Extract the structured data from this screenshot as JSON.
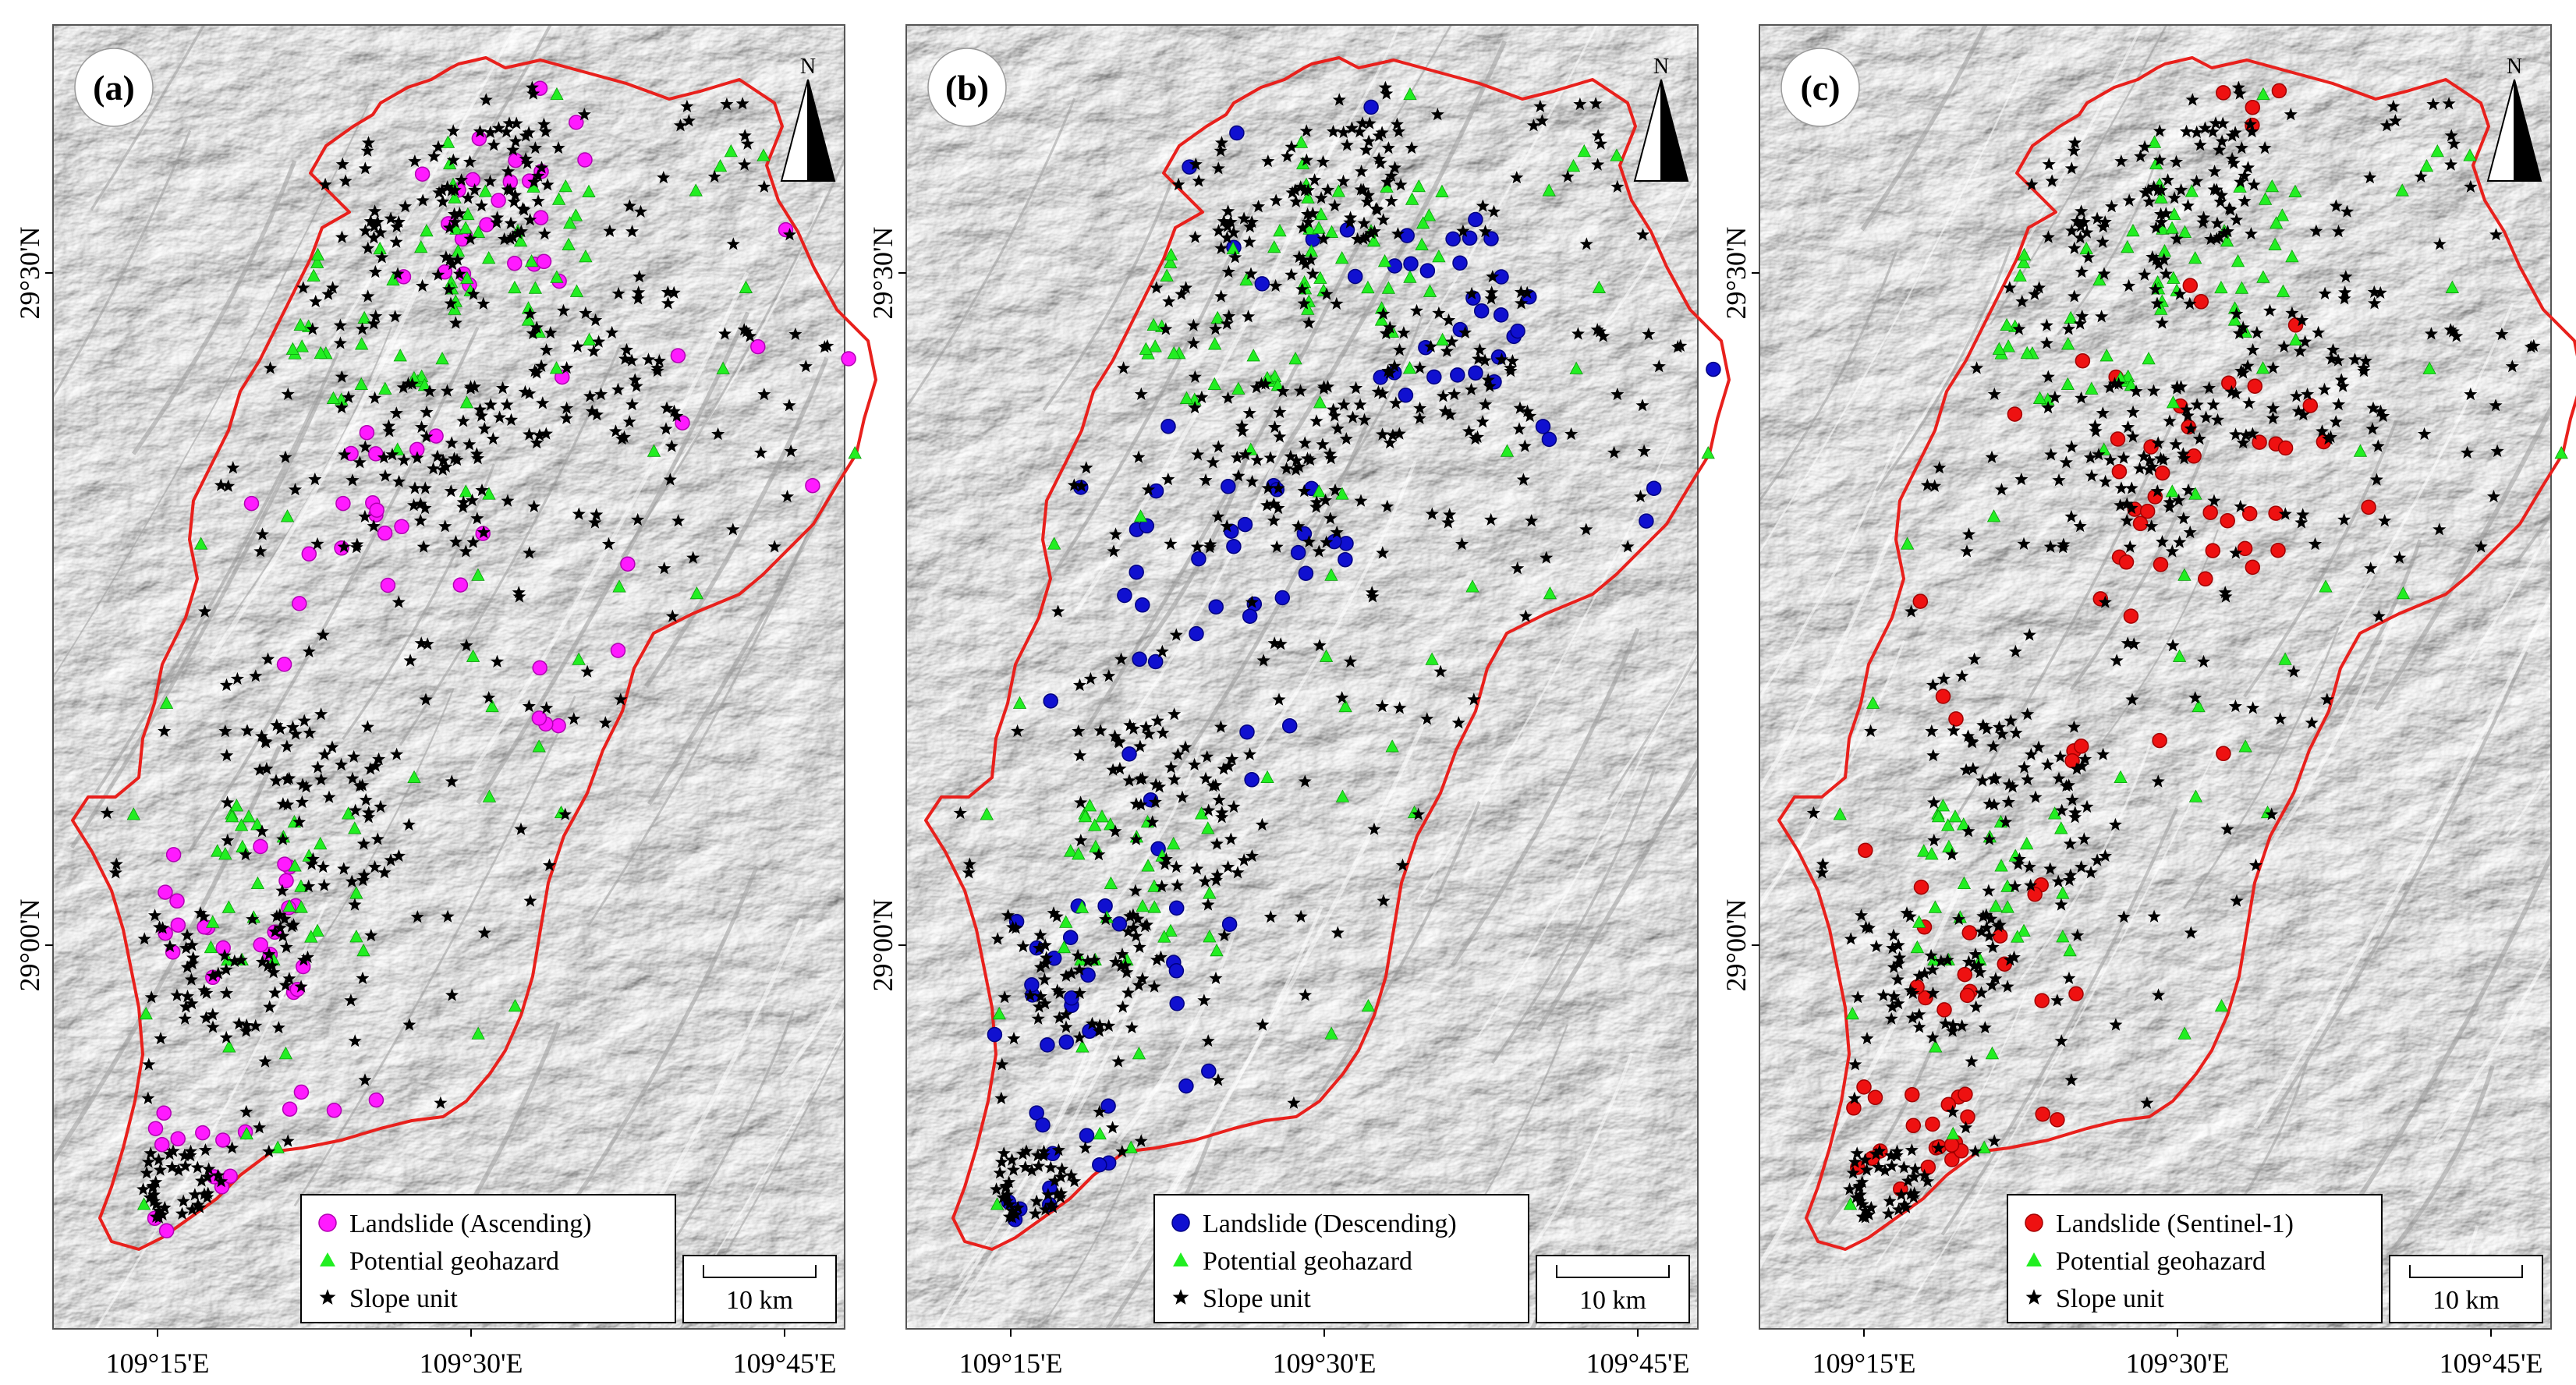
{
  "panels": [
    {
      "label": "(a)",
      "legend": {
        "landslide": "Landslide (Ascending)",
        "potential": "Potential geohazard",
        "slope": "Slope unit",
        "landslide_color": "#ff1aff",
        "landslide_stroke": "#b000b0"
      },
      "north": "N",
      "scalebar": "10 km"
    },
    {
      "label": "(b)",
      "legend": {
        "landslide": "Landslide (Descending)",
        "potential": "Potential geohazard",
        "slope": "Slope unit",
        "landslide_color": "#1010d0",
        "landslide_stroke": "#000080"
      },
      "north": "N",
      "scalebar": "10 km"
    },
    {
      "label": "(c)",
      "legend": {
        "landslide": "Landslide (Sentinel-1)",
        "potential": "Potential geohazard",
        "slope": "Slope unit",
        "landslide_color": "#ee1111",
        "landslide_stroke": "#a00000"
      },
      "north": "N",
      "scalebar": "10 km"
    }
  ],
  "axes": {
    "lon_ticks": [
      "109°15'E",
      "109°30'E",
      "109°45'E"
    ],
    "lat_ticks": [
      "29°30'N",
      "29°00'N"
    ]
  },
  "colors": {
    "boundary": "#e8201c",
    "potential": "#22ee22",
    "slope": "#000000",
    "hillshade_light": "#f2f2f2",
    "hillshade_dark": "#8c8c8c"
  }
}
